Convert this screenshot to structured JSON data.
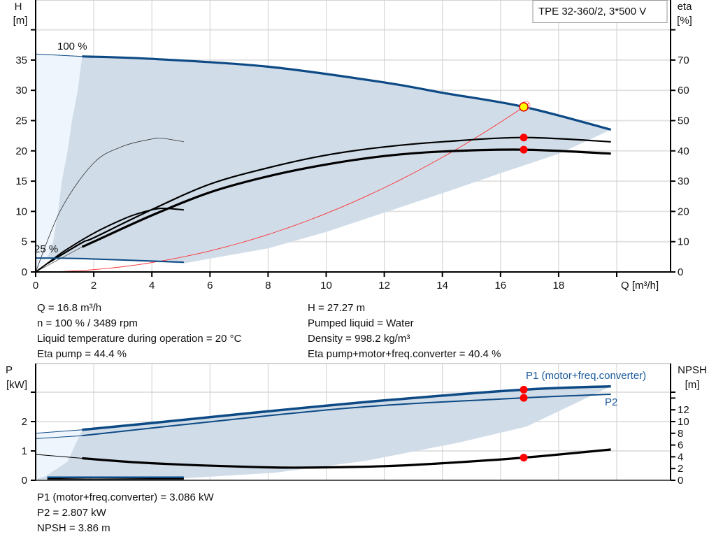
{
  "chart_data": [
    {
      "type": "line",
      "title": "TPE 32-360/2, 3*500 V",
      "xlabel": "Q [m³/h]",
      "ylabel_left": [
        "H",
        "[m]"
      ],
      "ylabel_right": [
        "eta",
        "[%]"
      ],
      "xlim": [
        0,
        22
      ],
      "ylim_left": [
        0,
        45
      ],
      "ylim_right": [
        0,
        90
      ],
      "x_ticks": [
        0,
        2,
        4,
        6,
        8,
        10,
        12,
        14,
        16,
        18
      ],
      "y_ticks_left": [
        0,
        5,
        10,
        15,
        20,
        25,
        30,
        35
      ],
      "y_ticks_right": [
        0,
        10,
        20,
        30,
        40,
        50,
        60,
        70
      ],
      "grid": true,
      "annotations": {
        "speed_max": "100 %",
        "speed_min": "25 %"
      },
      "colors": {
        "curve": "#0d4a85",
        "eta": "#000000",
        "system": "#ff3030",
        "point": "#ff0000",
        "duty_point": "#ffff00",
        "area": "#d0dce8",
        "area_light": "#eef5fc"
      },
      "series": {
        "head_100_ext": [
          [
            0,
            36
          ],
          [
            1.6,
            35.6
          ]
        ],
        "head_100": [
          [
            1.6,
            35.6
          ],
          [
            4,
            35.2
          ],
          [
            8,
            33.9
          ],
          [
            12,
            31.3
          ],
          [
            14,
            29.6
          ],
          [
            16.8,
            27.27
          ],
          [
            19.8,
            23.5
          ]
        ],
        "head_25": [
          [
            0,
            2.3
          ],
          [
            1.6,
            2.2
          ],
          [
            5.1,
            1.6
          ]
        ],
        "eta_pump_100": [
          [
            0.4,
            2.8
          ],
          [
            1.6,
            9.7
          ],
          [
            2,
            11.3
          ],
          [
            4,
            20.6
          ],
          [
            6,
            29
          ],
          [
            8,
            34.4
          ],
          [
            10,
            38.6
          ],
          [
            12,
            41.3
          ],
          [
            14,
            43
          ],
          [
            16.8,
            44.4
          ],
          [
            19.8,
            43
          ]
        ],
        "eta_total_100": [
          [
            1.6,
            8.3
          ],
          [
            2,
            10
          ],
          [
            4,
            18.7
          ],
          [
            6,
            26.3
          ],
          [
            8,
            31.6
          ],
          [
            10,
            35.5
          ],
          [
            12,
            38.3
          ],
          [
            14,
            39.8
          ],
          [
            16.8,
            40.4
          ],
          [
            19.8,
            39.1
          ]
        ],
        "eta_pump_25": [
          [
            0,
            0
          ],
          [
            0.87,
            20.6
          ],
          [
            2,
            36
          ],
          [
            3,
            41.5
          ],
          [
            4,
            43.9
          ],
          [
            4.4,
            44.1
          ],
          [
            5.1,
            43
          ]
        ],
        "eta_total_25": [
          [
            0,
            0
          ],
          [
            0.4,
            2.8
          ],
          [
            1,
            7
          ],
          [
            2,
            12.8
          ],
          [
            3,
            17.4
          ],
          [
            3.6,
            19.5
          ],
          [
            4.3,
            21
          ],
          [
            5.1,
            20.5
          ]
        ],
        "system_curve_h_at_duty": 27.27,
        "area_lower": [
          [
            19.8,
            23.5
          ],
          [
            18,
            19.5
          ],
          [
            16,
            16.3
          ],
          [
            14,
            13
          ],
          [
            12,
            9.8
          ],
          [
            10,
            6.6
          ],
          [
            8,
            3.9
          ],
          [
            6,
            2.2
          ],
          [
            5.1,
            1.4
          ]
        ],
        "area_left": [
          [
            1.6,
            35.6
          ],
          [
            1.45,
            30
          ],
          [
            1.25,
            25
          ],
          [
            1.1,
            20
          ],
          [
            0.9,
            15
          ],
          [
            0.77,
            10
          ],
          [
            0.6,
            5
          ],
          [
            0.4,
            2.2
          ]
        ]
      },
      "duty_point": {
        "Q": 16.8,
        "H": 27.27,
        "eta_pump": 44.4,
        "eta_total": 40.4
      }
    },
    {
      "type": "line",
      "xlim": [
        0,
        22
      ],
      "ylabel_left": [
        "P",
        "[kW]"
      ],
      "ylabel_right": [
        "NPSH",
        "[m]"
      ],
      "ylim_left": [
        0,
        4
      ],
      "ylim_right": [
        0,
        20
      ],
      "y_ticks_left": [
        0,
        1,
        2
      ],
      "y_ticks_right": [
        0,
        2,
        4,
        6,
        8,
        10,
        12
      ],
      "grid": true,
      "series_labels": {
        "p1": "P1 (motor+freq.converter)",
        "p2": "P2"
      },
      "series": {
        "p1_ext": [
          [
            0,
            1.6
          ],
          [
            1.6,
            1.72
          ]
        ],
        "p1": [
          [
            1.6,
            1.72
          ],
          [
            4,
            1.95
          ],
          [
            8,
            2.35
          ],
          [
            12,
            2.72
          ],
          [
            16.8,
            3.086
          ],
          [
            19.8,
            3.2
          ]
        ],
        "p2_ext": [
          [
            0,
            1.42
          ],
          [
            1.6,
            1.52
          ]
        ],
        "p2": [
          [
            1.6,
            1.52
          ],
          [
            8,
            2.2
          ],
          [
            12,
            2.55
          ],
          [
            16.8,
            2.807
          ],
          [
            19.8,
            2.93
          ]
        ],
        "npsh_ext": [
          [
            0,
            4.4
          ],
          [
            1.6,
            3.75
          ]
        ],
        "npsh": [
          [
            1.6,
            3.75
          ],
          [
            4,
            2.9
          ],
          [
            8,
            2.2
          ],
          [
            10,
            2.2
          ],
          [
            12,
            2.4
          ],
          [
            14,
            2.9
          ],
          [
            16.8,
            3.86
          ],
          [
            19.8,
            5.24
          ]
        ],
        "p1_25": [
          [
            0.4,
            0.1
          ],
          [
            5.1,
            0.1
          ]
        ],
        "p2_25": [
          [
            0.4,
            0.05
          ],
          [
            2,
            0.03
          ],
          [
            5.1,
            0.05
          ]
        ],
        "area_lower": [
          [
            19.8,
            3.2
          ],
          [
            16.9,
            1.83
          ],
          [
            14.6,
            1.29
          ],
          [
            11.4,
            0.67
          ],
          [
            8.25,
            0.26
          ],
          [
            5.1,
            0.07
          ]
        ],
        "area_left": [
          [
            1.6,
            1.72
          ],
          [
            1.1,
            0.64
          ],
          [
            0.35,
            0.14
          ],
          [
            0,
            0.03
          ]
        ]
      },
      "duty_point": {
        "Q": 16.8,
        "P1": 3.086,
        "P2": 2.807,
        "NPSH": 3.86
      }
    }
  ],
  "info_top_left": [
    "Q = 16.8 m³/h",
    "n = 100 % / 3489 rpm",
    "Liquid temperature during operation = 20 °C",
    "Eta pump = 44.4 %"
  ],
  "info_top_right": [
    "H = 27.27 m",
    "Pumped liquid = Water",
    "Density = 998.2 kg/m³",
    "Eta pump+motor+freq.converter = 40.4 %"
  ],
  "info_bottom": [
    "P1 (motor+freq.converter) = 3.086 kW",
    "P2 = 2.807 kW",
    "NPSH = 3.86 m"
  ]
}
